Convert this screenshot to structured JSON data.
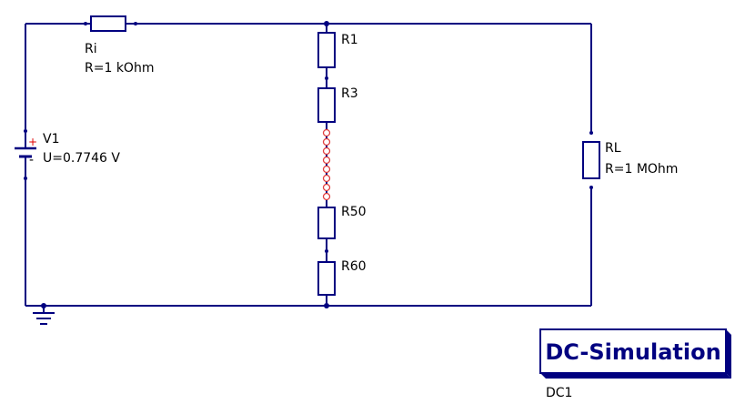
{
  "components": {
    "ri": {
      "name": "Ri",
      "value": "R=1 kOhm"
    },
    "v1": {
      "name": "V1",
      "value": "U=0.7746 V",
      "plus": "+",
      "minus": "-"
    },
    "r1": {
      "name": "R1"
    },
    "r3": {
      "name": "R3"
    },
    "r50": {
      "name": "R50"
    },
    "r60": {
      "name": "R60"
    },
    "rl": {
      "name": "RL",
      "value": "R=1 MOhm"
    }
  },
  "simulation": {
    "title": "DC-Simulation",
    "name": "DC1"
  },
  "colors": {
    "wire": "#000080",
    "port": "#e04040",
    "plus": "#e00000",
    "text": "#000000"
  }
}
